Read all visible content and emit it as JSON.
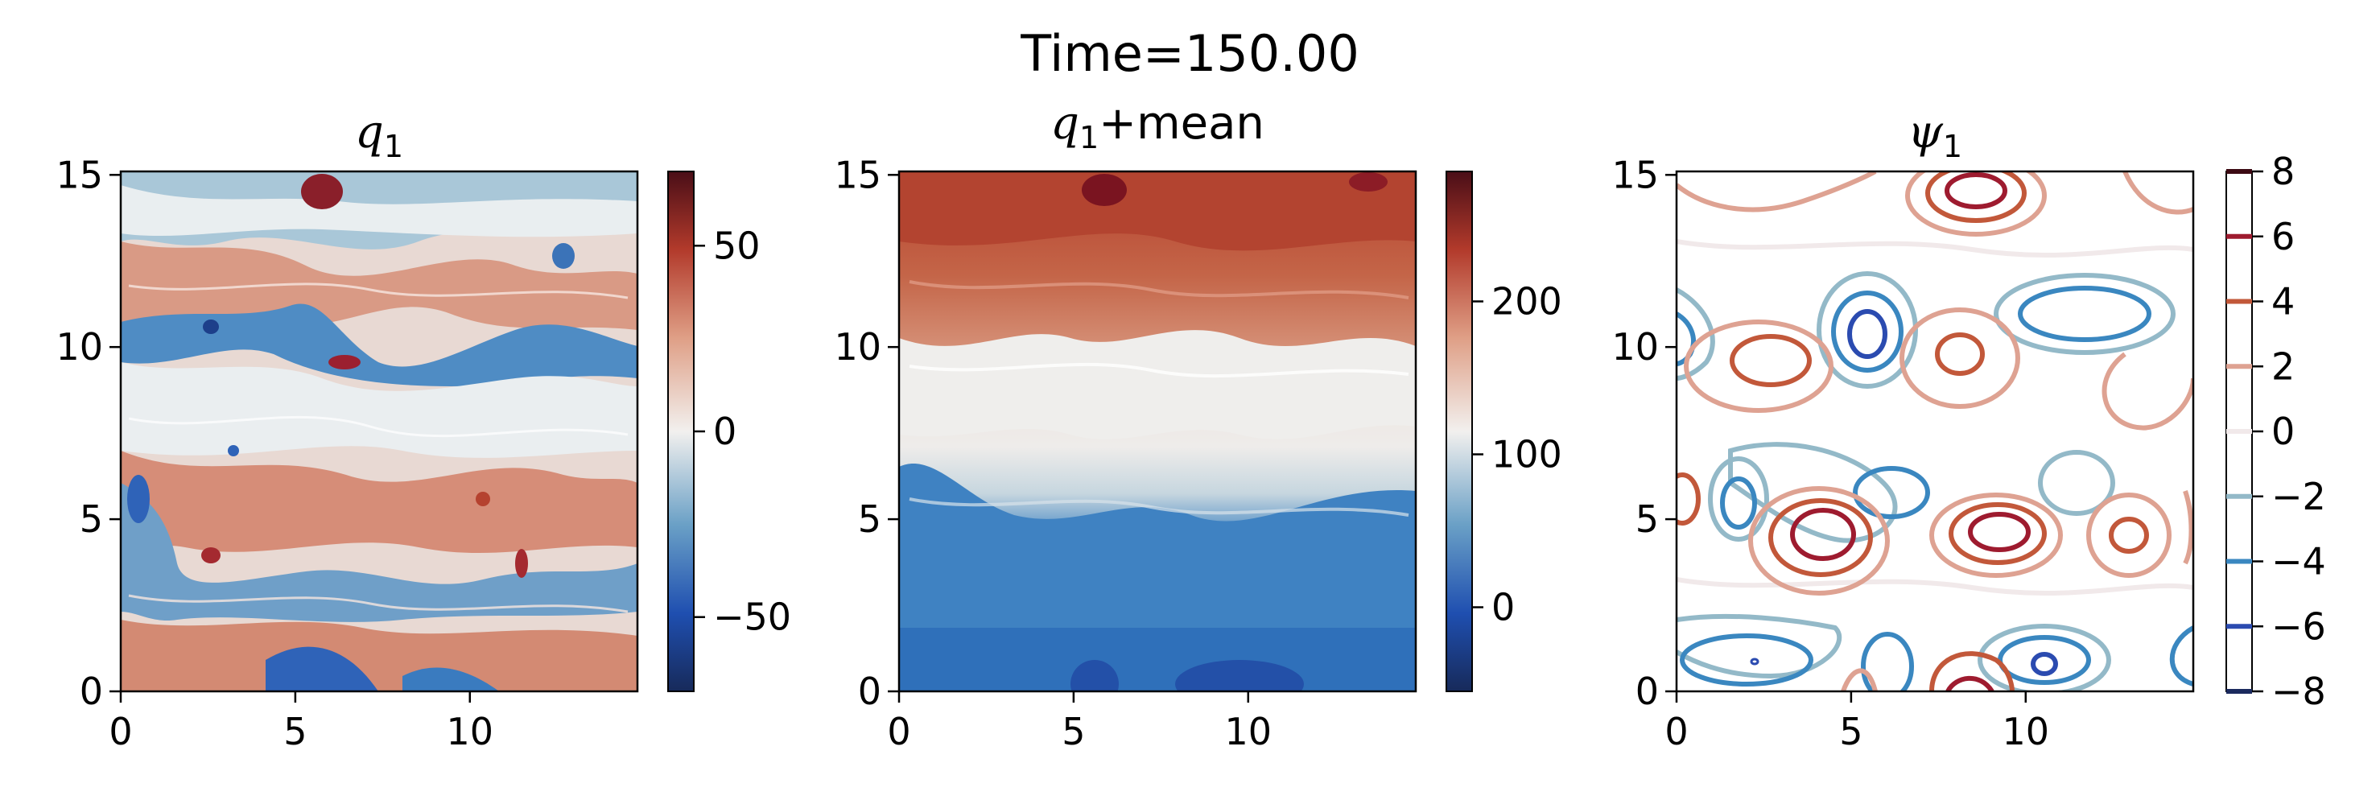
{
  "figure": {
    "suptitle": "Time=150.00"
  },
  "chart_data": [
    {
      "type": "heatmap",
      "title": "q1",
      "title_math": {
        "base": "q",
        "sub": "1",
        "suffix": ""
      },
      "xlabel": "",
      "ylabel": "",
      "xlim": [
        0,
        14.8
      ],
      "ylim": [
        0,
        15.1
      ],
      "x_ticks": [
        0,
        5,
        10
      ],
      "y_ticks": [
        0,
        5,
        10,
        15
      ],
      "colormap": "balance (blue–white–red)",
      "colorbar": {
        "range": [
          -70,
          70
        ],
        "ticks": [
          -50,
          0,
          50
        ],
        "tick_labels": [
          "−50",
          "0",
          "50"
        ]
      },
      "field": "turbulent potential vorticity anomaly with meandering bands"
    },
    {
      "type": "heatmap",
      "title": "q1+mean",
      "title_math": {
        "base": "q",
        "sub": "1",
        "suffix": "+mean"
      },
      "xlabel": "",
      "ylabel": "",
      "xlim": [
        0,
        14.8
      ],
      "ylim": [
        0,
        15.1
      ],
      "x_ticks": [
        0,
        5,
        10
      ],
      "y_ticks": [
        0,
        5,
        10,
        15
      ],
      "colormap": "balance (blue–white–red)",
      "colorbar": {
        "range": [
          -55,
          285
        ],
        "ticks": [
          0,
          100,
          200
        ],
        "tick_labels": [
          "0",
          "100",
          "200"
        ]
      },
      "field": "low values near bottom, high values near top, white meandering band near y≈7"
    },
    {
      "type": "contour",
      "title": "ψ1",
      "title_math": {
        "base": "ψ",
        "sub": "1",
        "suffix": ""
      },
      "xlabel": "",
      "ylabel": "",
      "xlim": [
        0,
        14.8
      ],
      "ylim": [
        0,
        15.1
      ],
      "x_ticks": [
        0,
        5,
        10
      ],
      "y_ticks": [
        0,
        5,
        10,
        15
      ],
      "levels": [
        -8,
        -6,
        -4,
        -2,
        0,
        2,
        4,
        6,
        8
      ],
      "level_labels": [
        "−8",
        "−6",
        "−4",
        "−2",
        "0",
        "2",
        "4",
        "6",
        "8"
      ],
      "level_colors": [
        "#1b2a5e",
        "#2b4bb0",
        "#3a87c0",
        "#93b9c8",
        "#f1e9ea",
        "#dea292",
        "#c2583a",
        "#9e1b2f",
        "#3c0a13"
      ]
    }
  ],
  "colors": {
    "blue_deep": "#172a5a",
    "blue": "#2f63b8",
    "blue_light": "#8fb6cf",
    "white": "#f2f0ee",
    "red_light": "#e0a58e",
    "red": "#b54232",
    "red_deep": "#4a0e17"
  }
}
